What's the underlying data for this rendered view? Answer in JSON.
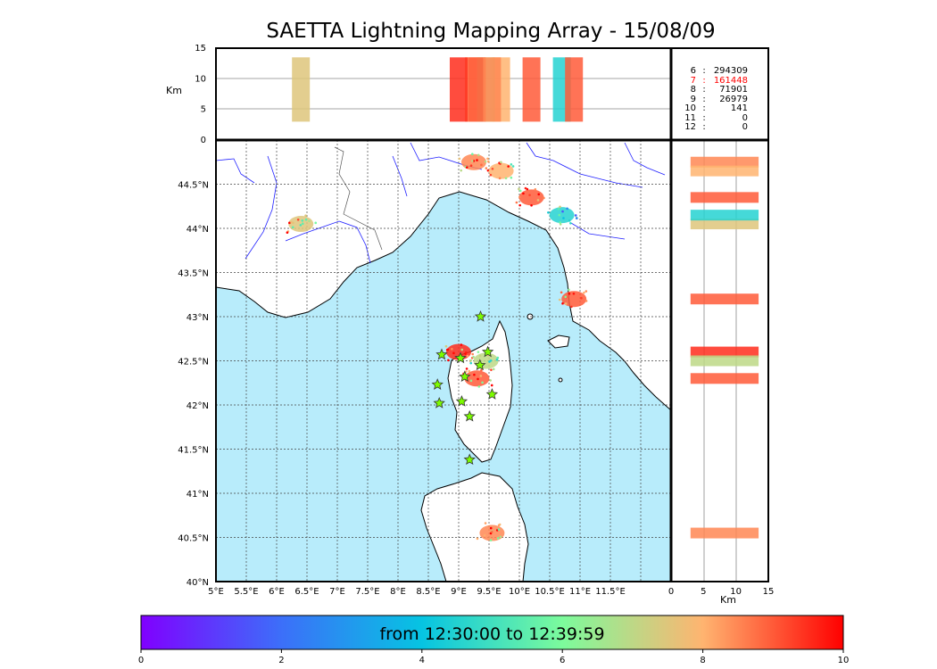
{
  "chart_data": {
    "type": "scatter",
    "title": "SAETTA Lightning Mapping Array - 15/08/09",
    "map_panel": {
      "xlim": [
        5,
        12.5
      ],
      "ylim": [
        40,
        45
      ],
      "x_ticks": [
        "5°E",
        "5.5°E",
        "6°E",
        "6.5°E",
        "7°E",
        "7.5°E",
        "8°E",
        "8.5°E",
        "9°E",
        "9.5°E",
        "10°E",
        "10.5°E",
        "11°E",
        "11.5°E"
      ],
      "y_ticks": [
        "40°N",
        "40.5°N",
        "41°N",
        "41.5°N",
        "42°N",
        "42.5°N",
        "43°N",
        "43.5°N",
        "44°N",
        "44.5°N"
      ],
      "grid": true,
      "lightning_clusters": [
        {
          "lon": 6.4,
          "lat": 44.05,
          "time_min": 7.5
        },
        {
          "lon": 9.25,
          "lat": 44.75,
          "time_min": 8.5
        },
        {
          "lon": 9.7,
          "lat": 44.65,
          "time_min": 8.0
        },
        {
          "lon": 10.2,
          "lat": 44.35,
          "time_min": 9.0
        },
        {
          "lon": 10.7,
          "lat": 44.15,
          "time_min": 4.5
        },
        {
          "lon": 10.9,
          "lat": 43.2,
          "time_min": 9.0
        },
        {
          "lon": 9.0,
          "lat": 42.6,
          "time_min": 9.5
        },
        {
          "lon": 9.45,
          "lat": 42.5,
          "time_min": 7.0
        },
        {
          "lon": 9.3,
          "lat": 42.3,
          "time_min": 9.0
        },
        {
          "lon": 9.55,
          "lat": 40.55,
          "time_min": 8.5
        }
      ],
      "sensor_stations": [
        {
          "lon": 9.36,
          "lat": 43.0
        },
        {
          "lon": 8.72,
          "lat": 42.57
        },
        {
          "lon": 9.03,
          "lat": 42.53
        },
        {
          "lon": 9.48,
          "lat": 42.6
        },
        {
          "lon": 9.35,
          "lat": 42.45
        },
        {
          "lon": 9.1,
          "lat": 42.32
        },
        {
          "lon": 8.65,
          "lat": 42.23
        },
        {
          "lon": 9.55,
          "lat": 42.12
        },
        {
          "lon": 8.68,
          "lat": 42.02
        },
        {
          "lon": 9.05,
          "lat": 42.04
        },
        {
          "lon": 9.18,
          "lat": 41.87
        },
        {
          "lon": 9.18,
          "lat": 41.38
        }
      ]
    },
    "top_panel": {
      "ylabel": "Km",
      "ylim": [
        0,
        15
      ],
      "y_ticks": [
        "0",
        "5",
        "10",
        "15"
      ]
    },
    "right_panel": {
      "xlabel": "Km",
      "xlim": [
        0,
        15
      ],
      "x_ticks": [
        "0",
        "5",
        "10",
        "15"
      ]
    },
    "station_counts": [
      {
        "stations": "6",
        "count": "294309",
        "color": "#000000"
      },
      {
        "stations": "7",
        "count": "161448",
        "color": "#ff0000"
      },
      {
        "stations": "8",
        "count": "71901",
        "color": "#000000"
      },
      {
        "stations": "9",
        "count": "26979",
        "color": "#000000"
      },
      {
        "stations": "10",
        "count": "141",
        "color": "#000000"
      },
      {
        "stations": "11",
        "count": "0",
        "color": "#000000"
      },
      {
        "stations": "12",
        "count": "0",
        "color": "#000000"
      }
    ],
    "colorbar": {
      "label": "from 12:30:00 to 12:39:59",
      "range": [
        0,
        10
      ],
      "ticks": [
        "0",
        "2",
        "4",
        "6",
        "8",
        "10"
      ],
      "colormap": "rainbow"
    }
  },
  "colors": {
    "sea": "#b8ecfb",
    "land": "#ffffff",
    "river": "#2020ff",
    "station_star": "#7cfc00"
  }
}
